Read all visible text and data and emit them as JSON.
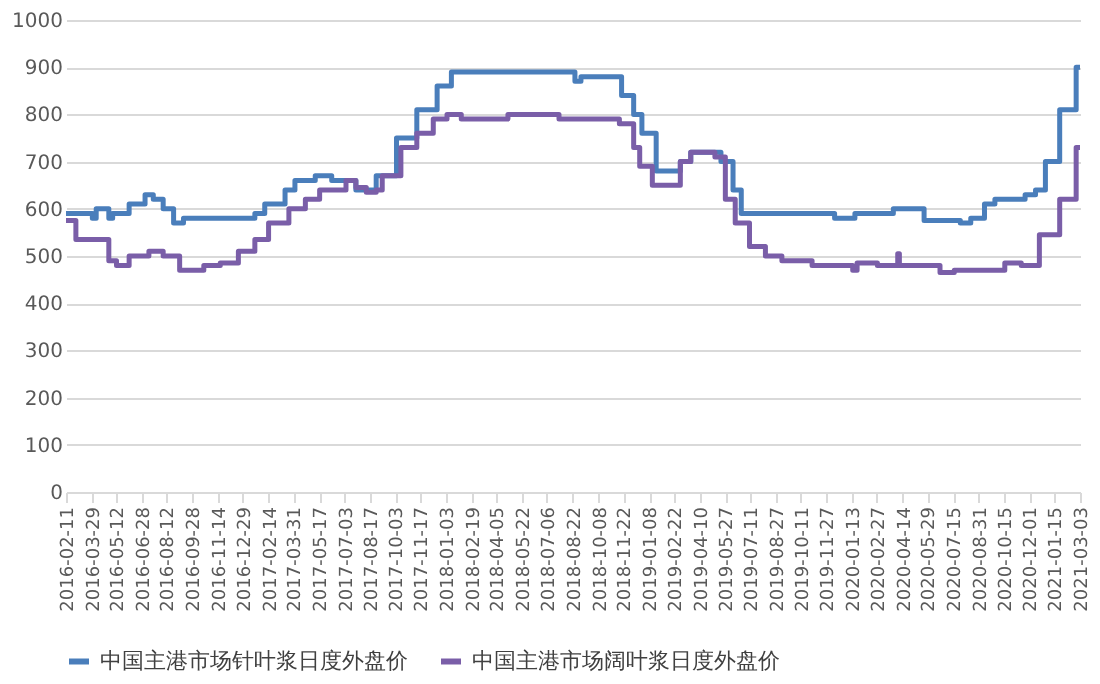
{
  "chart_data": {
    "type": "step",
    "xlim": [
      "2016-02-11",
      "2021-03-03"
    ],
    "xticks": [
      "2016-02-11",
      "2016-03-29",
      "2016-05-12",
      "2016-06-28",
      "2016-08-12",
      "2016-09-28",
      "2016-11-14",
      "2016-12-29",
      "2017-02-14",
      "2017-03-31",
      "2017-05-17",
      "2017-07-03",
      "2017-08-17",
      "2017-10-03",
      "2017-11-17",
      "2018-01-03",
      "2018-02-19",
      "2018-04-05",
      "2018-05-22",
      "2018-07-06",
      "2018-08-22",
      "2018-10-08",
      "2018-11-22",
      "2019-01-08",
      "2019-02-22",
      "2019-04-10",
      "2019-05-27",
      "2019-07-11",
      "2019-08-27",
      "2019-10-11",
      "2019-11-27",
      "2020-01-13",
      "2020-02-27",
      "2020-04-14",
      "2020-05-29",
      "2020-07-15",
      "2020-08-31",
      "2020-10-15",
      "2020-12-01",
      "2021-01-15",
      "2021-03-03"
    ],
    "ylim": [
      0,
      1000
    ],
    "yticks": [
      0,
      100,
      200,
      300,
      400,
      500,
      600,
      700,
      800,
      900,
      1000
    ],
    "grid": "y",
    "legend": "bottom",
    "series": [
      {
        "name": "中国主港市场针叶浆日度外盘价",
        "color": "#4a7ebb",
        "x": [
          "2016-02-11",
          "2016-03-30",
          "2016-04-06",
          "2016-04-29",
          "2016-05-06",
          "2016-06-05",
          "2016-07-04",
          "2016-07-19",
          "2016-08-06",
          "2016-08-25",
          "2016-09-12",
          "2017-01-20",
          "2017-02-07",
          "2017-03-16",
          "2017-04-03",
          "2017-05-10",
          "2017-06-09",
          "2017-07-23",
          "2017-08-29",
          "2017-10-05",
          "2017-11-11",
          "2017-12-18",
          "2018-01-13",
          "2018-08-26",
          "2018-09-06",
          "2018-11-19",
          "2018-12-11",
          "2018-12-26",
          "2019-01-21",
          "2019-03-06",
          "2019-03-25",
          "2019-05-19",
          "2019-06-10",
          "2019-06-25",
          "2019-12-12",
          "2020-01-18",
          "2020-03-28",
          "2020-05-23",
          "2020-07-28",
          "2020-08-16",
          "2020-09-10",
          "2020-09-29",
          "2020-11-23",
          "2020-12-12",
          "2020-12-30",
          "2021-01-25",
          "2021-02-24",
          "2021-03-03"
        ],
        "values": [
          590,
          580,
          600,
          580,
          590,
          610,
          630,
          620,
          600,
          570,
          580,
          590,
          610,
          640,
          660,
          670,
          660,
          640,
          670,
          750,
          810,
          860,
          890,
          870,
          880,
          840,
          800,
          760,
          680,
          700,
          720,
          700,
          640,
          590,
          580,
          590,
          600,
          575,
          570,
          580,
          610,
          620,
          630,
          640,
          700,
          810,
          900,
          900
        ]
      },
      {
        "name": "中国主港市场阔叶浆日度外盘价",
        "color": "#7a5ea8",
        "x": [
          "2016-02-11",
          "2016-02-29",
          "2016-04-29",
          "2016-05-13",
          "2016-06-05",
          "2016-07-11",
          "2016-08-06",
          "2016-09-05",
          "2016-10-19",
          "2016-11-18",
          "2016-12-21",
          "2017-01-20",
          "2017-02-14",
          "2017-03-23",
          "2017-04-22",
          "2017-05-18",
          "2017-07-05",
          "2017-07-23",
          "2017-08-11",
          "2017-08-29",
          "2017-09-09",
          "2017-10-13",
          "2017-11-11",
          "2017-12-11",
          "2018-01-05",
          "2018-01-31",
          "2018-04-26",
          "2018-07-28",
          "2018-11-15",
          "2018-12-11",
          "2018-12-22",
          "2019-01-14",
          "2019-03-06",
          "2019-03-25",
          "2019-05-08",
          "2019-05-27",
          "2019-06-14",
          "2019-07-10",
          "2019-08-08",
          "2019-09-07",
          "2019-11-01",
          "2020-01-14",
          "2020-01-22",
          "2020-02-28",
          "2020-04-05",
          "2020-04-08",
          "2020-06-21",
          "2020-07-17",
          "2020-10-17",
          "2020-11-16",
          "2020-12-19",
          "2021-01-25",
          "2021-02-24",
          "2021-03-03"
        ],
        "values": [
          575,
          535,
          490,
          480,
          500,
          510,
          500,
          470,
          480,
          485,
          510,
          535,
          570,
          600,
          620,
          640,
          660,
          645,
          635,
          640,
          670,
          730,
          760,
          790,
          800,
          790,
          800,
          790,
          780,
          730,
          690,
          650,
          700,
          720,
          710,
          620,
          570,
          520,
          500,
          490,
          480,
          470,
          485,
          480,
          505,
          480,
          465,
          470,
          485,
          480,
          545,
          620,
          730,
          730
        ]
      }
    ]
  }
}
